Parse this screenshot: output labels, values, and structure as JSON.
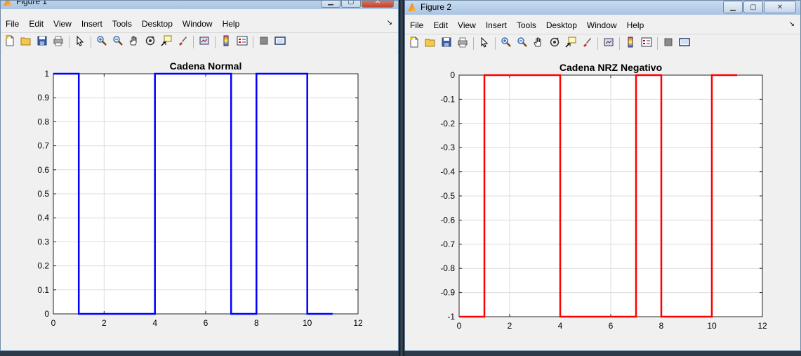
{
  "menu_items": [
    "File",
    "Edit",
    "View",
    "Insert",
    "Tools",
    "Desktop",
    "Window",
    "Help"
  ],
  "windows": [
    {
      "title": "Figure 1",
      "chart_data": {
        "type": "line",
        "title": "Cadena Normal",
        "xlabel": "",
        "ylabel": "",
        "color": "#0000ff",
        "xlim": [
          0,
          12
        ],
        "ylim": [
          0,
          1
        ],
        "xticks": [
          0,
          2,
          4,
          6,
          8,
          10,
          12
        ],
        "yticks": [
          0,
          0.1,
          0.2,
          0.3,
          0.4,
          0.5,
          0.6,
          0.7,
          0.8,
          0.9,
          1
        ],
        "grid": true,
        "x": [
          0,
          1,
          1,
          4,
          4,
          7,
          7,
          8,
          8,
          10,
          10,
          11
        ],
        "y": [
          1,
          1,
          0,
          0,
          1,
          1,
          0,
          0,
          1,
          1,
          0,
          0
        ]
      }
    },
    {
      "title": "Figure 2",
      "chart_data": {
        "type": "line",
        "title": "Cadena NRZ Negativo",
        "xlabel": "",
        "ylabel": "",
        "color": "#ff0000",
        "xlim": [
          0,
          12
        ],
        "ylim": [
          -1,
          0
        ],
        "xticks": [
          0,
          2,
          4,
          6,
          8,
          10,
          12
        ],
        "yticks": [
          -1,
          -0.9,
          -0.8,
          -0.7,
          -0.6,
          -0.5,
          -0.4,
          -0.3,
          -0.2,
          -0.1,
          0
        ],
        "grid": true,
        "x": [
          0,
          1,
          1,
          4,
          4,
          7,
          7,
          8,
          8,
          10,
          10,
          11
        ],
        "y": [
          -1,
          -1,
          0,
          0,
          -1,
          -1,
          0,
          0,
          -1,
          -1,
          0,
          0
        ]
      }
    }
  ],
  "toolbar_icons": [
    "new-file-icon",
    "open-folder-icon",
    "save-icon",
    "print-icon",
    "pointer-icon",
    "zoom-in-icon",
    "zoom-out-icon",
    "pan-hand-icon",
    "rotate-3d-icon",
    "data-cursor-icon",
    "brush-icon",
    "link-plot-icon",
    "colorbar-icon",
    "legend-icon",
    "hide-plot-tools-icon",
    "show-plot-tools-icon"
  ],
  "window_buttons": {
    "minimize": "▁",
    "maximize": "▢",
    "close": "✕"
  }
}
